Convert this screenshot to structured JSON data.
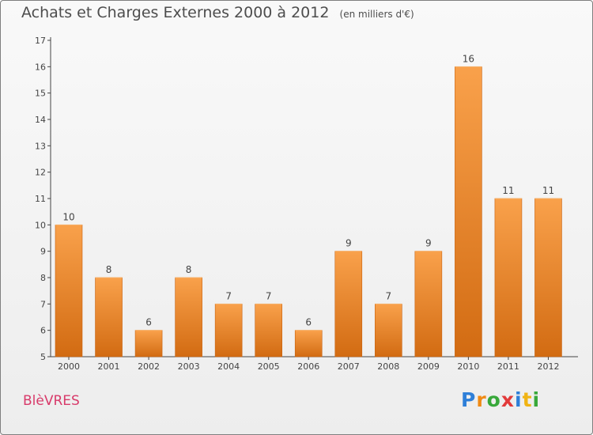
{
  "title": "Achats et Charges Externes 2000 à 2012",
  "unit_label": "(en milliers d'€)",
  "commune": "BlèVRES",
  "logo": {
    "letters": [
      "P",
      "r",
      "o",
      "x",
      "i",
      "t",
      "i"
    ],
    "colors": [
      "#2e7fd8",
      "#f08a14",
      "#38a83a",
      "#e23a3a",
      "#2e7fd8",
      "#f0b414",
      "#38a83a"
    ]
  },
  "colors": {
    "bar_top": "#f9a14b",
    "bar_bottom": "#d26b12",
    "title": "#4d4d4d",
    "commune": "#d83a6a"
  },
  "chart_data": {
    "type": "bar",
    "title": "Achats et Charges Externes 2000 à 2012",
    "subtitle": "(en milliers d'€)",
    "xlabel": "",
    "ylabel": "",
    "categories": [
      "2000",
      "2001",
      "2002",
      "2003",
      "2004",
      "2005",
      "2006",
      "2007",
      "2008",
      "2009",
      "2010",
      "2011",
      "2012"
    ],
    "values": [
      10,
      8,
      6,
      8,
      7,
      7,
      6,
      9,
      7,
      9,
      16,
      11,
      11
    ],
    "ylim": [
      5,
      17
    ],
    "yticks": [
      5,
      6,
      7,
      8,
      9,
      10,
      11,
      12,
      13,
      14,
      15,
      16,
      17
    ],
    "grid": false,
    "legend": "none",
    "data_labels": true
  }
}
